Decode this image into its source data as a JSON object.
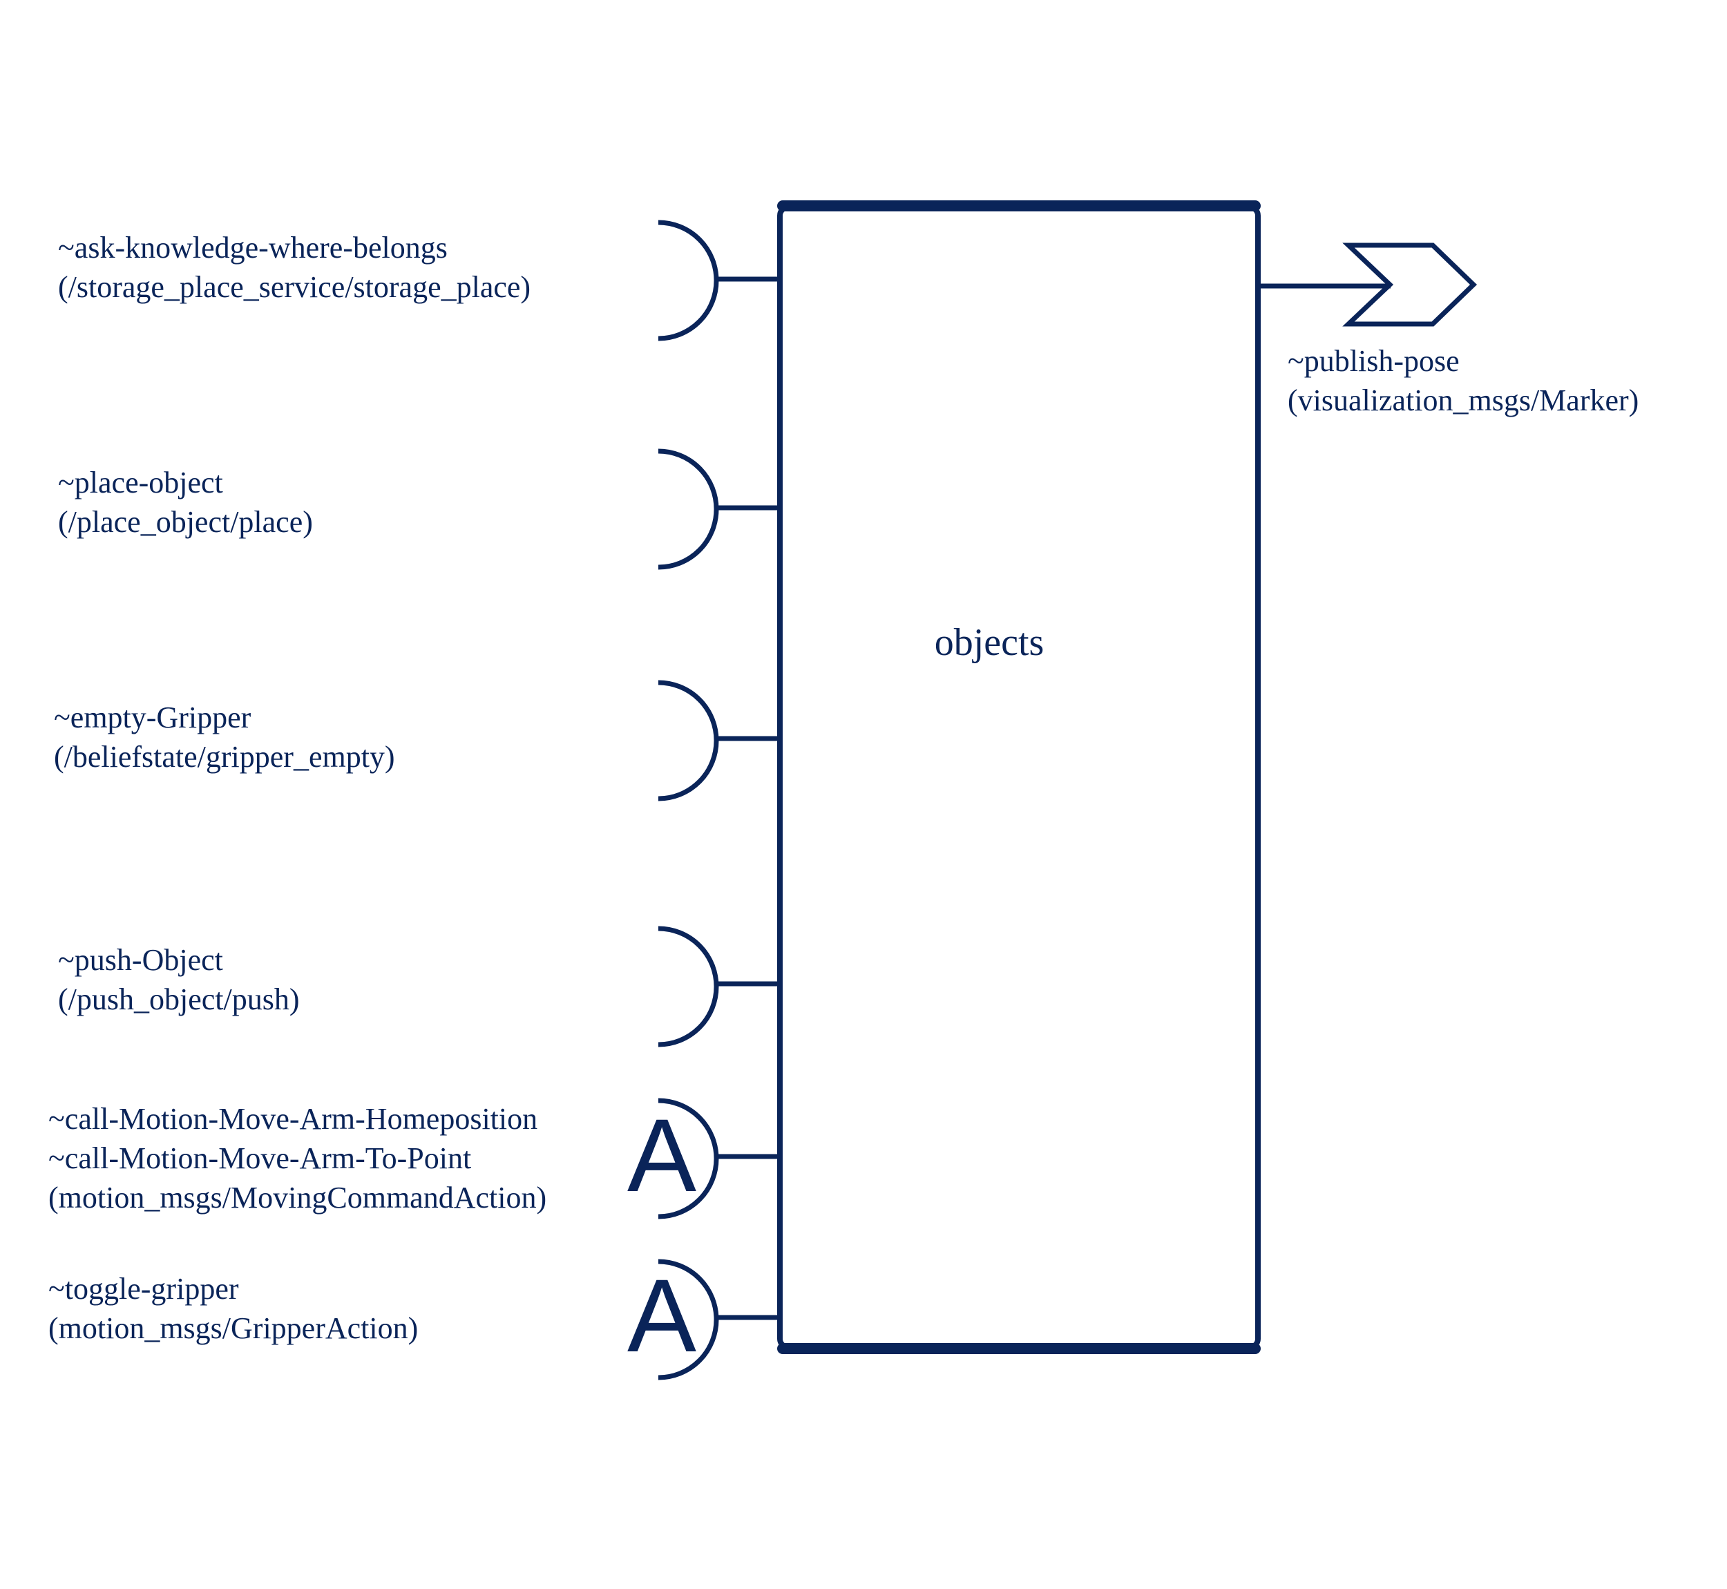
{
  "colors": {
    "stroke": "#0a2459",
    "background": "#ffffff"
  },
  "component": {
    "name": "objects"
  },
  "interfaces": [
    {
      "lines": [
        "~ask-knowledge-where-belongs",
        "(/storage_place_service/storage_place)"
      ],
      "kind": "service"
    },
    {
      "lines": [
        "~place-object",
        "(/place_object/place)"
      ],
      "kind": "service"
    },
    {
      "lines": [
        "~empty-Gripper",
        "(/beliefstate/gripper_empty)"
      ],
      "kind": "service"
    },
    {
      "lines": [
        "~push-Object",
        "(/push_object/push)"
      ],
      "kind": "service"
    },
    {
      "lines": [
        "~call-Motion-Move-Arm-Homeposition",
        "~call-Motion-Move-Arm-To-Point",
        "(motion_msgs/MovingCommandAction)"
      ],
      "kind": "action",
      "glyph": "A"
    },
    {
      "lines": [
        "~toggle-gripper",
        "(motion_msgs/GripperAction)"
      ],
      "kind": "action",
      "glyph": "A"
    }
  ],
  "publisher": {
    "lines": [
      "~publish-pose",
      "(visualization_msgs/Marker)"
    ]
  }
}
